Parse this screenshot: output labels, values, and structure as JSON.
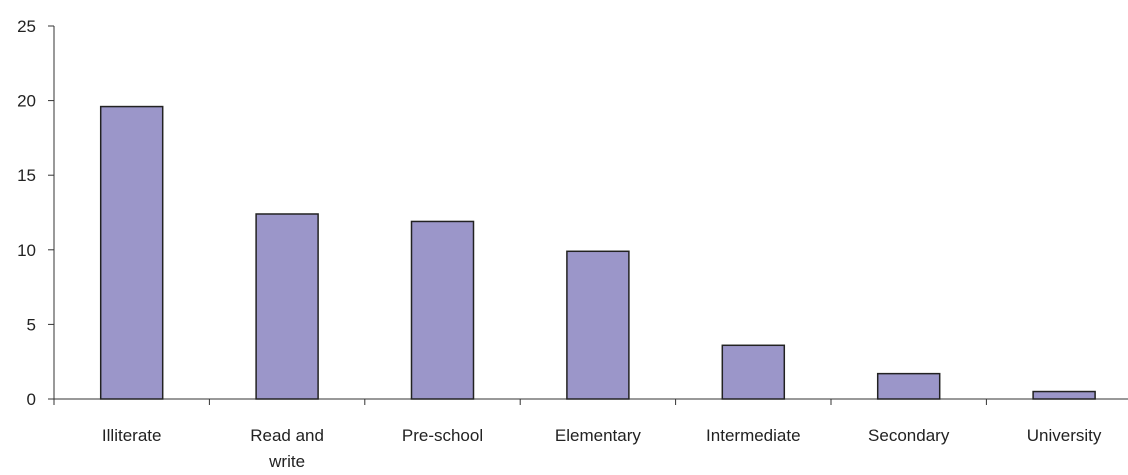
{
  "chart_data": {
    "type": "bar",
    "title": "",
    "xlabel": "",
    "ylabel": "",
    "categories": [
      [
        "Illiterate"
      ],
      [
        "Read and",
        "write"
      ],
      [
        "Pre-school"
      ],
      [
        "Elementary"
      ],
      [
        "Intermediate"
      ],
      [
        "Secondary"
      ],
      [
        "University"
      ]
    ],
    "values": [
      19.6,
      12.4,
      11.9,
      9.9,
      3.6,
      1.7,
      0.5
    ],
    "ylim": [
      0,
      25
    ],
    "yticks": [
      0,
      5,
      10,
      15,
      20,
      25
    ],
    "grid": false,
    "legend": "none",
    "bar_color": "#9b96c9",
    "bar_edge_color": "#222222"
  }
}
